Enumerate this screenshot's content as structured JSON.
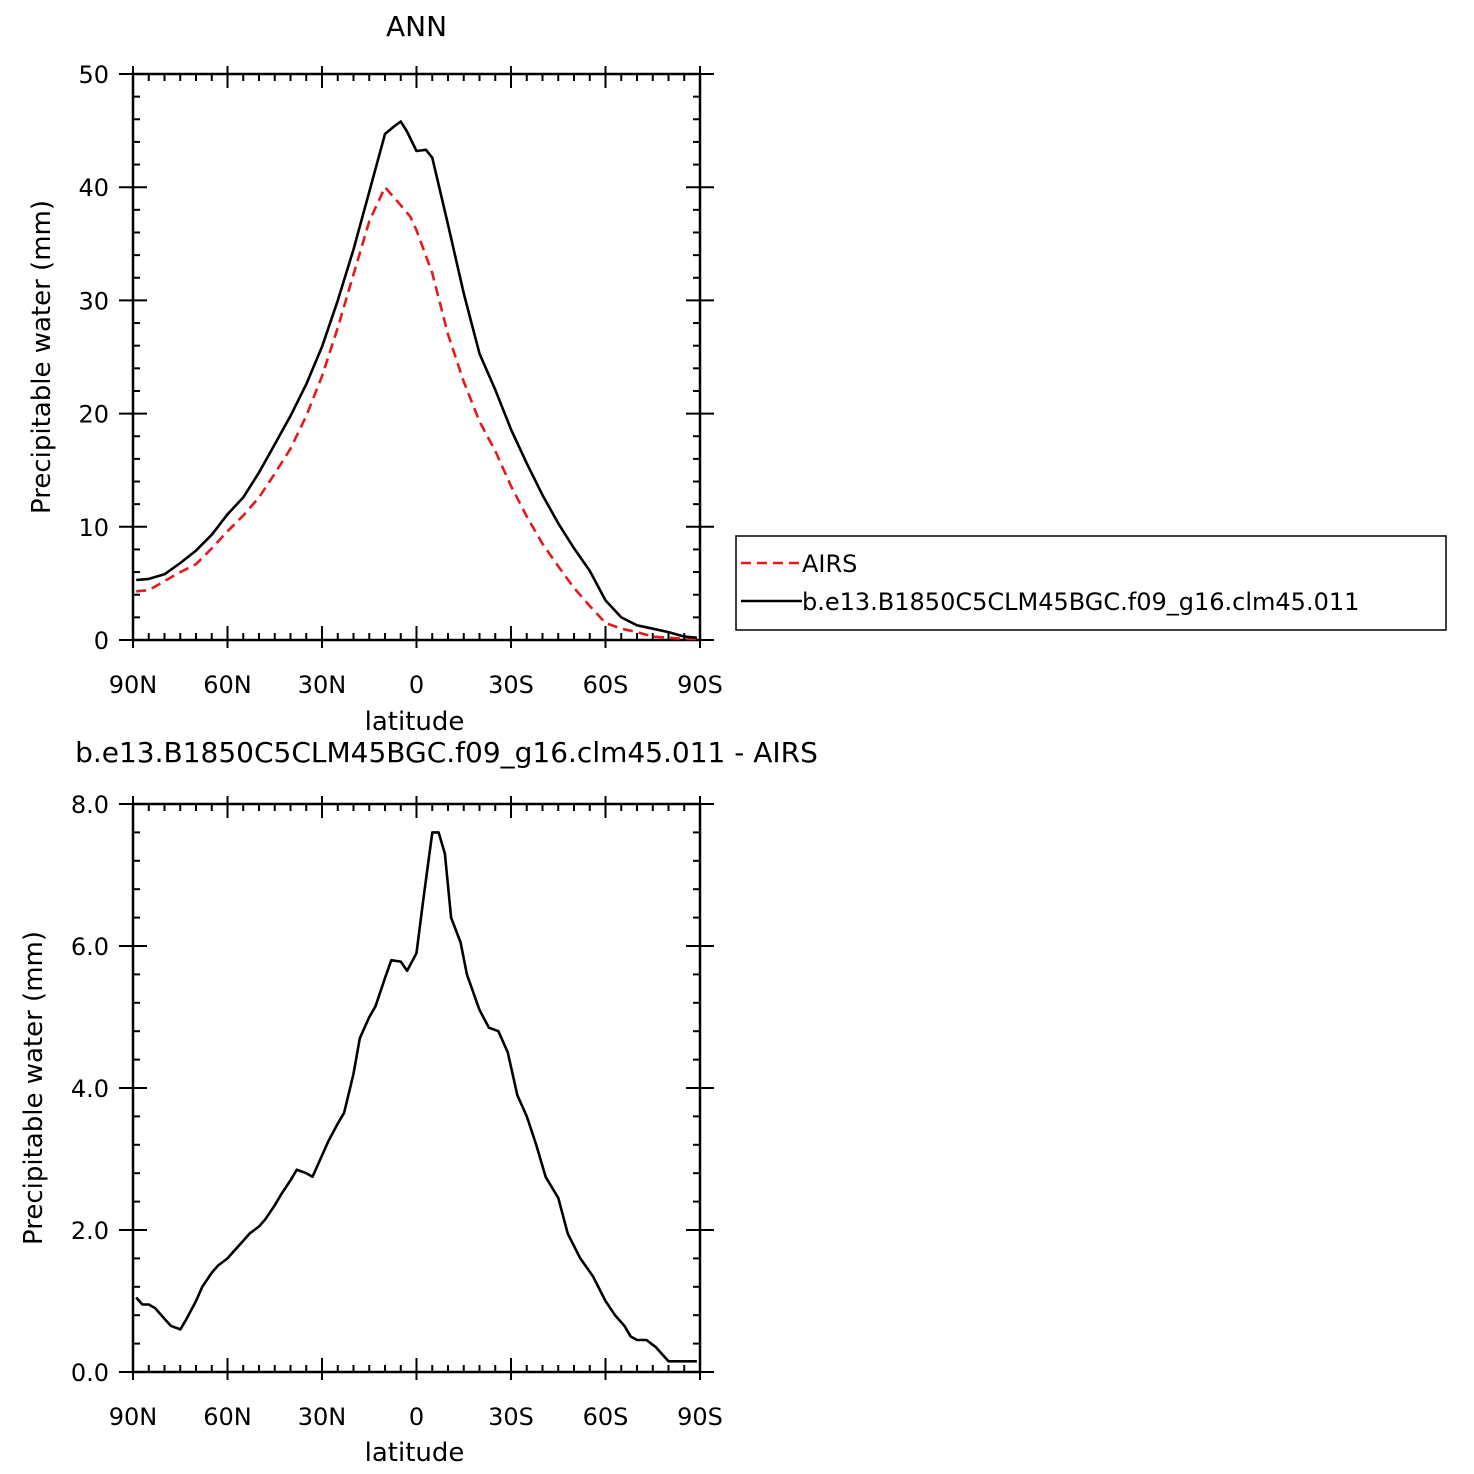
{
  "chart_data": [
    {
      "type": "line",
      "title": "ANN",
      "xlabel": "latitude",
      "ylabel": "Precipitable water (mm)",
      "xlim": [
        90,
        -90
      ],
      "ylim": [
        0,
        50
      ],
      "xticks": [
        90,
        60,
        30,
        0,
        -30,
        -60,
        -90
      ],
      "xtick_labels": [
        "90N",
        "60N",
        "30N",
        "0",
        "30S",
        "60S",
        "90S"
      ],
      "yticks": [
        0,
        10,
        20,
        30,
        40,
        50
      ],
      "ytick_labels": [
        "0",
        "10",
        "20",
        "30",
        "40",
        "50"
      ],
      "legend": "right",
      "series": [
        {
          "name": "AIRS",
          "color": "#e41a1c",
          "dash": "dashed",
          "x": [
            89,
            85,
            80,
            75,
            70,
            65,
            60,
            55,
            50,
            45,
            40,
            35,
            30,
            25,
            20,
            15,
            10,
            5,
            2,
            0,
            -5,
            -10,
            -15,
            -20,
            -25,
            -30,
            -35,
            -40,
            -45,
            -50,
            -55,
            -60,
            -65,
            -70,
            -75,
            -80,
            -85,
            -89
          ],
          "y": [
            4.3,
            4.4,
            5.2,
            6.0,
            6.7,
            8.1,
            9.6,
            11.0,
            12.6,
            14.7,
            16.9,
            19.8,
            23.3,
            27.6,
            32.3,
            37.0,
            40.0,
            38.4,
            37.4,
            36.2,
            32.4,
            27.0,
            22.8,
            19.3,
            16.7,
            13.6,
            10.9,
            8.5,
            6.5,
            4.6,
            3.0,
            1.5,
            1.0,
            0.7,
            0.3,
            0.2,
            0.1,
            0.1
          ]
        },
        {
          "name": "b.e13.B1850C5CLM45BGC.f09_g16.clm45.011",
          "color": "#000000",
          "dash": "solid",
          "x": [
            89,
            85,
            80,
            75,
            70,
            65,
            60,
            55,
            50,
            45,
            40,
            35,
            30,
            25,
            20,
            15,
            10,
            7,
            5,
            3,
            0,
            -3,
            -5,
            -10,
            -15,
            -20,
            -25,
            -30,
            -35,
            -40,
            -45,
            -50,
            -55,
            -60,
            -65,
            -70,
            -75,
            -80,
            -85,
            -89
          ],
          "y": [
            5.3,
            5.4,
            5.8,
            6.8,
            7.9,
            9.3,
            11.1,
            12.6,
            14.8,
            17.3,
            19.8,
            22.6,
            25.9,
            30.0,
            34.5,
            39.6,
            44.7,
            45.4,
            45.8,
            44.9,
            43.2,
            43.3,
            42.6,
            36.7,
            30.6,
            25.3,
            22.1,
            18.6,
            15.6,
            12.8,
            10.3,
            8.1,
            6.1,
            3.5,
            2.0,
            1.3,
            1.0,
            0.7,
            0.3,
            0.2
          ]
        }
      ]
    },
    {
      "type": "line",
      "title": "b.e13.B1850C5CLM45BGC.f09_g16.clm45.011 - AIRS",
      "xlabel": "latitude",
      "ylabel": "Precipitable water (mm)",
      "xlim": [
        90,
        -90
      ],
      "ylim": [
        0,
        8
      ],
      "xticks": [
        90,
        60,
        30,
        0,
        -30,
        -60,
        -90
      ],
      "xtick_labels": [
        "90N",
        "60N",
        "30N",
        "0",
        "30S",
        "60S",
        "90S"
      ],
      "yticks": [
        0,
        2,
        4,
        6,
        8
      ],
      "ytick_labels": [
        "0.0",
        "2.0",
        "4.0",
        "6.0",
        "8.0"
      ],
      "series": [
        {
          "color": "#000000",
          "dash": "solid",
          "x": [
            89,
            87,
            85,
            83,
            80,
            78,
            75,
            73,
            70,
            68,
            65,
            63,
            60,
            58,
            55,
            53,
            50,
            48,
            45,
            43,
            40,
            38,
            35,
            33,
            30,
            28,
            25,
            23,
            20,
            18,
            15,
            13,
            10,
            8,
            5,
            3,
            0,
            -2,
            -5,
            -7,
            -9,
            -11,
            -14,
            -16,
            -18,
            -20,
            -23,
            -26,
            -29,
            -32,
            -35,
            -38,
            -41,
            -45,
            -48,
            -52,
            -56,
            -60,
            -63,
            -66,
            -68,
            -70,
            -73,
            -76,
            -78,
            -80,
            -83,
            -85,
            -88,
            -89
          ],
          "y": [
            1.05,
            0.95,
            0.95,
            0.9,
            0.75,
            0.65,
            0.6,
            0.75,
            1.0,
            1.2,
            1.4,
            1.5,
            1.6,
            1.7,
            1.85,
            1.95,
            2.05,
            2.15,
            2.35,
            2.5,
            2.7,
            2.85,
            2.8,
            2.75,
            3.05,
            3.25,
            3.5,
            3.65,
            4.2,
            4.7,
            5.0,
            5.15,
            5.55,
            5.8,
            5.78,
            5.65,
            5.9,
            6.6,
            7.6,
            7.6,
            7.3,
            6.4,
            6.05,
            5.6,
            5.35,
            5.1,
            4.85,
            4.8,
            4.5,
            3.9,
            3.6,
            3.2,
            2.75,
            2.45,
            1.95,
            1.6,
            1.35,
            1.0,
            0.8,
            0.65,
            0.5,
            0.45,
            0.45,
            0.35,
            0.25,
            0.15,
            0.15,
            0.15,
            0.15,
            0.15
          ]
        }
      ]
    }
  ]
}
